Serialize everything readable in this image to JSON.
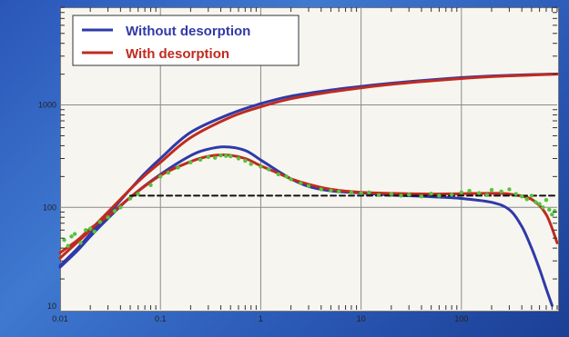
{
  "chart_data": {
    "type": "line",
    "title": "",
    "xlabel": "",
    "ylabel": "",
    "x_scale": "log",
    "y_scale": "log",
    "xlim": [
      0.01,
      900
    ],
    "ylim": [
      10,
      9000
    ],
    "x_ticks": [
      {
        "value": 0.01,
        "label": "0.01"
      },
      {
        "value": 0.1,
        "label": "0.1"
      },
      {
        "value": 1,
        "label": "1"
      },
      {
        "value": 10,
        "label": "10"
      },
      {
        "value": 100,
        "label": "100"
      }
    ],
    "y_ticks": [
      {
        "value": 10,
        "label": "10"
      },
      {
        "value": 100,
        "label": "100"
      },
      {
        "value": 1000,
        "label": "1000"
      }
    ],
    "grid": true,
    "legend_position": "top-left",
    "series": [
      {
        "name": "Without desorption",
        "color": "#2f3aa8",
        "x": [
          0.01,
          0.015,
          0.02,
          0.03,
          0.05,
          0.07,
          0.1,
          0.2,
          0.5,
          1,
          2,
          5,
          10,
          20,
          50,
          100,
          200,
          500,
          900
        ],
        "y": [
          27,
          40,
          55,
          85,
          150,
          215,
          300,
          540,
          820,
          1030,
          1220,
          1400,
          1520,
          1630,
          1760,
          1850,
          1920,
          1980,
          2010
        ]
      },
      {
        "name": "",
        "color": "#2f3aa8",
        "x": [
          0.01,
          0.015,
          0.02,
          0.03,
          0.05,
          0.1,
          0.2,
          0.3,
          0.45,
          0.7,
          1,
          1.5,
          2,
          3,
          5,
          10,
          20,
          50,
          100,
          200,
          300,
          400,
          500,
          600,
          700,
          800
        ],
        "y": [
          26,
          38,
          52,
          78,
          125,
          210,
          320,
          370,
          390,
          360,
          290,
          225,
          190,
          160,
          145,
          138,
          132,
          127,
          122,
          112,
          95,
          65,
          40,
          25,
          16,
          11
        ]
      },
      {
        "name": "With desorption",
        "color": "#c02b1f",
        "x": [
          0.01,
          0.015,
          0.02,
          0.03,
          0.05,
          0.07,
          0.1,
          0.2,
          0.5,
          1,
          2,
          5,
          10,
          20,
          50,
          100,
          200,
          500,
          900
        ],
        "y": [
          32,
          46,
          60,
          90,
          150,
          205,
          275,
          480,
          760,
          960,
          1150,
          1340,
          1470,
          1590,
          1720,
          1810,
          1890,
          1960,
          2000
        ]
      },
      {
        "name": "",
        "color": "#c02b1f",
        "x": [
          0.01,
          0.015,
          0.02,
          0.03,
          0.05,
          0.1,
          0.2,
          0.3,
          0.45,
          0.7,
          1,
          1.5,
          2,
          3,
          5,
          10,
          20,
          50,
          100,
          200,
          300,
          500,
          700,
          900
        ],
        "y": [
          36,
          48,
          62,
          82,
          125,
          205,
          280,
          315,
          325,
          300,
          255,
          215,
          190,
          168,
          150,
          140,
          137,
          135,
          136,
          137,
          135,
          120,
          85,
          45
        ]
      },
      {
        "name": "",
        "color": "#111111",
        "dashed": true,
        "x": [
          0.05,
          900
        ],
        "y": [
          130,
          130
        ]
      }
    ],
    "scatter": {
      "color": "#55c43a",
      "x": [
        0.011,
        0.012,
        0.013,
        0.014,
        0.016,
        0.018,
        0.02,
        0.022,
        0.025,
        0.03,
        0.035,
        0.04,
        0.05,
        0.06,
        0.08,
        0.1,
        0.12,
        0.15,
        0.2,
        0.25,
        0.3,
        0.35,
        0.4,
        0.45,
        0.5,
        0.6,
        0.7,
        0.8,
        1,
        1.2,
        1.5,
        1.8,
        2,
        2.5,
        3,
        4,
        5,
        6,
        8,
        10,
        12,
        15,
        20,
        25,
        30,
        40,
        50,
        60,
        80,
        100,
        120,
        150,
        180,
        200,
        250,
        300,
        350,
        400,
        450,
        500,
        550,
        600,
        650,
        700,
        750,
        800,
        850
      ],
      "y": [
        48,
        42,
        52,
        55,
        45,
        60,
        62,
        58,
        72,
        80,
        92,
        100,
        122,
        135,
        165,
        200,
        218,
        245,
        275,
        292,
        310,
        305,
        322,
        318,
        315,
        300,
        285,
        265,
        250,
        235,
        210,
        200,
        188,
        172,
        162,
        150,
        146,
        143,
        140,
        138,
        140,
        132,
        135,
        130,
        133,
        128,
        136,
        130,
        133,
        140,
        145,
        138,
        132,
        148,
        143,
        150,
        135,
        128,
        120,
        130,
        112,
        108,
        100,
        118,
        95,
        85,
        92
      ]
    }
  },
  "legend": {
    "items": [
      {
        "label": "Without desorption",
        "color": "#2f3aa8"
      },
      {
        "label": "With desorption",
        "color": "#c02b1f"
      }
    ]
  }
}
